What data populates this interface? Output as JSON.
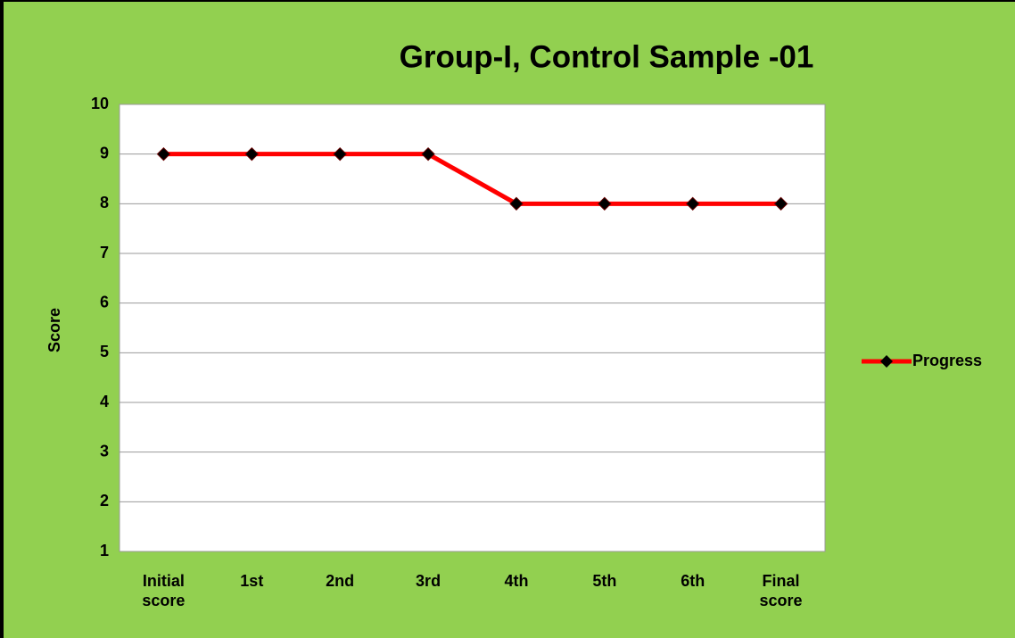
{
  "chart_data": {
    "type": "line",
    "title": "Group-I, Control Sample -01",
    "y_label": "Score",
    "categories": [
      "Initial score",
      "1st",
      "2nd",
      "3rd",
      "4th",
      "5th",
      "6th",
      "Final score"
    ],
    "series": [
      {
        "name": "Progress",
        "color": "#ff0000",
        "values": [
          9,
          9,
          9,
          9,
          8,
          8,
          8,
          8
        ]
      }
    ],
    "ylim": [
      1,
      10
    ],
    "yticks": [
      1,
      2,
      3,
      4,
      5,
      6,
      7,
      8,
      9,
      10
    ],
    "grid": true,
    "legend": "right"
  }
}
